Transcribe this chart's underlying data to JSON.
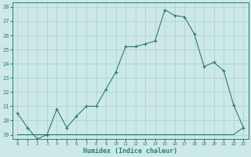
{
  "xlabel": "Humidex (Indice chaleur)",
  "x_main": [
    0,
    1,
    2,
    3,
    4,
    5,
    6,
    7,
    8,
    9,
    10,
    11,
    12,
    13,
    14,
    15,
    16,
    17,
    18,
    19,
    20,
    21,
    22,
    23
  ],
  "y_main": [
    20.5,
    19.5,
    18.7,
    19.0,
    20.8,
    19.5,
    20.3,
    21.0,
    21.0,
    22.2,
    23.4,
    25.2,
    25.2,
    25.4,
    25.6,
    27.8,
    27.4,
    27.3,
    26.1,
    23.8,
    24.1,
    23.5,
    21.1,
    19.5
  ],
  "x_diag": [
    0,
    1,
    2,
    3,
    4,
    5,
    6,
    7,
    8,
    9,
    10,
    11,
    12,
    13,
    14,
    15,
    16,
    17,
    18,
    19,
    20,
    21,
    22,
    23
  ],
  "y_diag": [
    19.0,
    19.0,
    19.0,
    19.0,
    19.0,
    19.0,
    19.0,
    19.0,
    19.0,
    19.0,
    19.0,
    19.0,
    19.0,
    19.0,
    19.0,
    19.0,
    19.0,
    19.0,
    19.0,
    19.0,
    19.0,
    19.0,
    19.0,
    19.5
  ],
  "line_color": "#2e7d6e",
  "bg_color": "#cce8e8",
  "grid_color": "#a8d0d0",
  "ylim": [
    18.7,
    28.3
  ],
  "xlim": [
    -0.5,
    23.5
  ],
  "yticks": [
    19,
    20,
    21,
    22,
    23,
    24,
    25,
    26,
    27,
    28
  ],
  "xticks": [
    0,
    1,
    2,
    3,
    4,
    5,
    6,
    7,
    8,
    9,
    10,
    11,
    12,
    13,
    14,
    15,
    16,
    17,
    18,
    19,
    20,
    21,
    22,
    23
  ]
}
